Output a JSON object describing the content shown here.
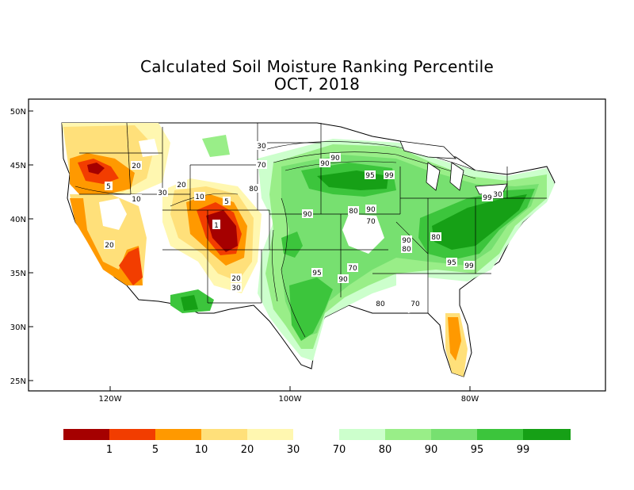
{
  "title": "Calculated Soil Moisture Ranking Percentile",
  "subtitle": "OCT, 2018",
  "map": {
    "lat_ticks": [
      "50N",
      "45N",
      "40N",
      "35N",
      "30N",
      "25N"
    ],
    "lon_ticks": [
      "120W",
      "100W",
      "80W"
    ]
  },
  "contour_labels": [
    "30",
    "20",
    "5",
    "10",
    "30",
    "20",
    "10",
    "5",
    "1",
    "20",
    "20",
    "30",
    "70",
    "80",
    "90",
    "95",
    "99",
    "90",
    "80",
    "90",
    "70",
    "95",
    "90",
    "70",
    "80",
    "70",
    "90",
    "80",
    "95",
    "99",
    "99",
    "30",
    "80",
    "90"
  ],
  "legend": {
    "dry_labels": [
      "1",
      "5",
      "10",
      "20",
      "30"
    ],
    "wet_labels": [
      "70",
      "80",
      "90",
      "95",
      "99"
    ],
    "dry_colors": [
      "#a50000",
      "#f23d00",
      "#ff9900",
      "#ffe07a",
      "#fff7b0"
    ],
    "wet_colors": [
      "#ccffcc",
      "#99ee88",
      "#77e070",
      "#3cc53c",
      "#16a016"
    ]
  }
}
